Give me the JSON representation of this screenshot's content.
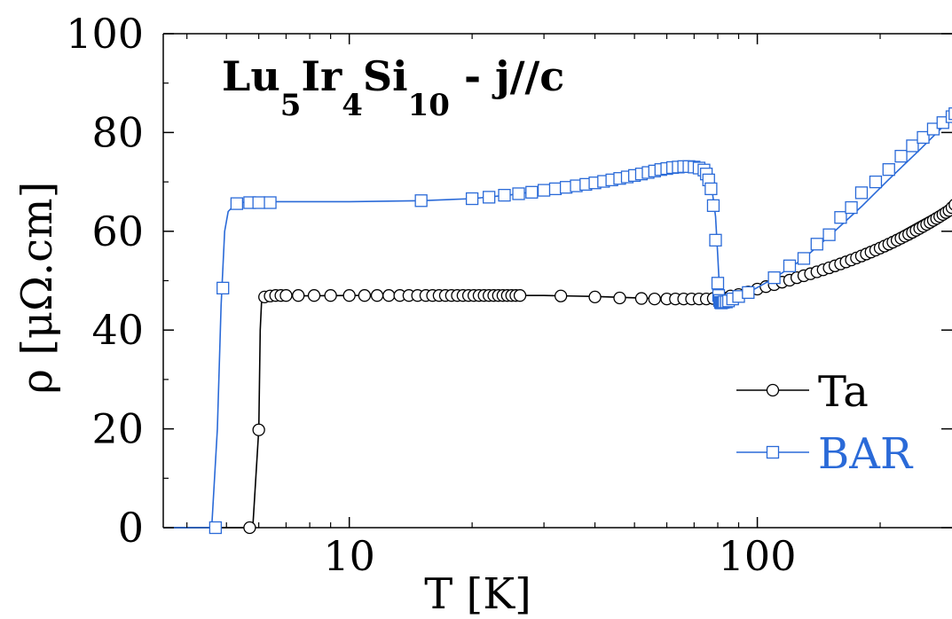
{
  "chart_data": {
    "type": "line",
    "title_parts": [
      {
        "text": "Lu",
        "sub": false
      },
      {
        "text": "5",
        "sub": true
      },
      {
        "text": "Ir",
        "sub": false
      },
      {
        "text": "4",
        "sub": true
      },
      {
        "text": "Si",
        "sub": false
      },
      {
        "text": "10",
        "sub": true
      },
      {
        "text": " - j//c",
        "sub": false
      }
    ],
    "xlabel": "T [K]",
    "ylabel": "ρ [μΩ.cm]",
    "xscale": "log",
    "xlim": [
      3.5,
      300
    ],
    "ylim": [
      0,
      100
    ],
    "xticks": [
      {
        "value": 10,
        "label": "10"
      },
      {
        "value": 100,
        "label": "100"
      }
    ],
    "yticks": [
      {
        "value": 0,
        "label": "0"
      },
      {
        "value": 20,
        "label": "20"
      },
      {
        "value": 40,
        "label": "40"
      },
      {
        "value": 60,
        "label": "60"
      },
      {
        "value": 80,
        "label": "80"
      },
      {
        "value": 100,
        "label": "100"
      }
    ],
    "legend_position": "bottom-right",
    "series": [
      {
        "name": "Ta",
        "color": "#000000",
        "marker": "circle",
        "line": [
          [
            3.5,
            0
          ],
          [
            5.8,
            0
          ],
          [
            5.9,
            10
          ],
          [
            6.0,
            20
          ],
          [
            6.05,
            40
          ],
          [
            6.1,
            46.5
          ],
          [
            6.5,
            46.9
          ],
          [
            10,
            47
          ],
          [
            20,
            47
          ],
          [
            30,
            47
          ],
          [
            40,
            46.8
          ],
          [
            60,
            46.3
          ],
          [
            80,
            46.6
          ],
          [
            95,
            47.5
          ],
          [
            110,
            48.8
          ],
          [
            130,
            50.6
          ],
          [
            150,
            52.5
          ],
          [
            180,
            55.5
          ],
          [
            210,
            58.5
          ],
          [
            250,
            62
          ],
          [
            300,
            65.5
          ]
        ],
        "points": [
          [
            5.7,
            0
          ],
          [
            6.0,
            19.8
          ],
          [
            6.2,
            46.7
          ],
          [
            6.4,
            46.9
          ],
          [
            6.6,
            47
          ],
          [
            6.8,
            47
          ],
          [
            7.0,
            47
          ],
          [
            7.5,
            47
          ],
          [
            8.2,
            47
          ],
          [
            9.0,
            47
          ],
          [
            10,
            47
          ],
          [
            10.9,
            47
          ],
          [
            11.7,
            47
          ],
          [
            12.5,
            47
          ],
          [
            13.3,
            47
          ],
          [
            14.0,
            47
          ],
          [
            14.7,
            47
          ],
          [
            15.4,
            47
          ],
          [
            16.0,
            47
          ],
          [
            16.6,
            47
          ],
          [
            17.2,
            47
          ],
          [
            17.8,
            47
          ],
          [
            18.4,
            47
          ],
          [
            19.0,
            47
          ],
          [
            19.6,
            47
          ],
          [
            20.2,
            47
          ],
          [
            20.8,
            47
          ],
          [
            21.4,
            47
          ],
          [
            22.0,
            47
          ],
          [
            22.6,
            47
          ],
          [
            23.2,
            47
          ],
          [
            23.8,
            47
          ],
          [
            24.4,
            47
          ],
          [
            25.0,
            47
          ],
          [
            25.6,
            47
          ],
          [
            26.2,
            47
          ],
          [
            33,
            46.9
          ],
          [
            40,
            46.7
          ],
          [
            46,
            46.5
          ],
          [
            52,
            46.4
          ],
          [
            56,
            46.3
          ],
          [
            60,
            46.3
          ],
          [
            63,
            46.3
          ],
          [
            66,
            46.3
          ],
          [
            69,
            46.3
          ],
          [
            72,
            46.3
          ],
          [
            75,
            46.3
          ],
          [
            78,
            46.4
          ],
          [
            82,
            46.6
          ],
          [
            86,
            46.9
          ],
          [
            90,
            47.2
          ],
          [
            95,
            47.7
          ],
          [
            100,
            48.3
          ],
          [
            105,
            48.8
          ],
          [
            110,
            49.2
          ],
          [
            115,
            49.7
          ],
          [
            120,
            50.1
          ],
          [
            125,
            50.6
          ],
          [
            130,
            51.0
          ],
          [
            135,
            51.4
          ],
          [
            140,
            51.8
          ],
          [
            145,
            52.2
          ],
          [
            150,
            52.6
          ],
          [
            155,
            53.0
          ],
          [
            160,
            53.4
          ],
          [
            165,
            53.8
          ],
          [
            170,
            54.2
          ],
          [
            175,
            54.6
          ],
          [
            180,
            55.0
          ],
          [
            185,
            55.4
          ],
          [
            190,
            55.8
          ],
          [
            195,
            56.2
          ],
          [
            200,
            56.6
          ],
          [
            205,
            57.0
          ],
          [
            210,
            57.4
          ],
          [
            215,
            57.8
          ],
          [
            220,
            58.2
          ],
          [
            225,
            58.6
          ],
          [
            230,
            59.0
          ],
          [
            235,
            59.4
          ],
          [
            240,
            59.8
          ],
          [
            245,
            60.2
          ],
          [
            250,
            60.6
          ],
          [
            255,
            61.0
          ],
          [
            260,
            61.4
          ],
          [
            265,
            61.8
          ],
          [
            270,
            62.2
          ],
          [
            275,
            62.6
          ],
          [
            280,
            63.0
          ],
          [
            285,
            63.4
          ],
          [
            290,
            63.8
          ],
          [
            295,
            64.2
          ],
          [
            300,
            64.8
          ],
          [
            305,
            65.4
          ]
        ]
      },
      {
        "name": "BAR",
        "color": "#2a6ad8",
        "marker": "square",
        "line": [
          [
            3.5,
            0
          ],
          [
            4.6,
            0
          ],
          [
            4.75,
            20
          ],
          [
            4.85,
            45
          ],
          [
            4.95,
            60
          ],
          [
            5.05,
            64
          ],
          [
            5.3,
            65.8
          ],
          [
            6,
            66
          ],
          [
            10,
            66
          ],
          [
            15,
            66.2
          ],
          [
            20,
            66.6
          ],
          [
            25,
            67.4
          ],
          [
            30,
            68.3
          ],
          [
            40,
            69.8
          ],
          [
            50,
            71.5
          ],
          [
            60,
            72.8
          ],
          [
            70,
            73.2
          ],
          [
            74,
            72.8
          ],
          [
            77,
            70
          ],
          [
            79,
            63
          ],
          [
            80,
            55
          ],
          [
            80.8,
            48
          ],
          [
            81.5,
            46
          ],
          [
            82,
            45.6
          ],
          [
            86,
            46
          ],
          [
            95,
            47.6
          ],
          [
            110,
            50.5
          ],
          [
            130,
            54.5
          ],
          [
            150,
            59
          ],
          [
            180,
            65
          ],
          [
            210,
            70.5
          ],
          [
            250,
            76.5
          ],
          [
            300,
            83
          ]
        ],
        "points": [
          [
            4.7,
            0
          ],
          [
            4.9,
            48.5
          ],
          [
            5.3,
            65.6
          ],
          [
            5.7,
            65.8
          ],
          [
            6.0,
            65.8
          ],
          [
            6.4,
            65.8
          ],
          [
            15,
            66.2
          ],
          [
            20,
            66.6
          ],
          [
            22,
            66.9
          ],
          [
            24,
            67.3
          ],
          [
            26,
            67.6
          ],
          [
            28,
            67.9
          ],
          [
            30,
            68.3
          ],
          [
            32,
            68.6
          ],
          [
            34,
            68.9
          ],
          [
            36,
            69.2
          ],
          [
            38,
            69.5
          ],
          [
            40,
            69.8
          ],
          [
            42,
            70.1
          ],
          [
            44,
            70.4
          ],
          [
            46,
            70.7
          ],
          [
            48,
            71.0
          ],
          [
            50,
            71.3
          ],
          [
            52,
            71.6
          ],
          [
            54,
            71.9
          ],
          [
            56,
            72.2
          ],
          [
            58,
            72.5
          ],
          [
            60,
            72.7
          ],
          [
            62,
            72.9
          ],
          [
            64,
            73.0
          ],
          [
            66,
            73.1
          ],
          [
            68,
            73.1
          ],
          [
            70,
            73.0
          ],
          [
            72,
            72.8
          ],
          [
            74,
            72.4
          ],
          [
            75,
            71.6
          ],
          [
            76,
            70.4
          ],
          [
            77,
            68.6
          ],
          [
            78,
            65.2
          ],
          [
            79,
            58.2
          ],
          [
            80,
            49.5
          ],
          [
            80.4,
            47
          ],
          [
            80.8,
            46.0
          ],
          [
            81.2,
            45.6
          ],
          [
            81.6,
            45.5
          ],
          [
            82,
            45.6
          ],
          [
            82.5,
            45.6
          ],
          [
            83,
            45.7
          ],
          [
            84,
            45.7
          ],
          [
            85,
            45.9
          ],
          [
            87,
            46.3
          ],
          [
            90,
            46.8
          ],
          [
            95,
            47.6
          ],
          [
            110,
            50.6
          ],
          [
            120,
            53.0
          ],
          [
            130,
            54.5
          ],
          [
            140,
            57.4
          ],
          [
            150,
            59.3
          ],
          [
            160,
            62.8
          ],
          [
            170,
            64.8
          ],
          [
            180,
            67.8
          ],
          [
            195,
            70.0
          ],
          [
            210,
            72.5
          ],
          [
            225,
            75.2
          ],
          [
            240,
            77.3
          ],
          [
            255,
            79.0
          ],
          [
            270,
            80.7
          ],
          [
            285,
            82.0
          ],
          [
            300,
            83.2
          ],
          [
            305,
            83.8
          ]
        ]
      }
    ]
  }
}
